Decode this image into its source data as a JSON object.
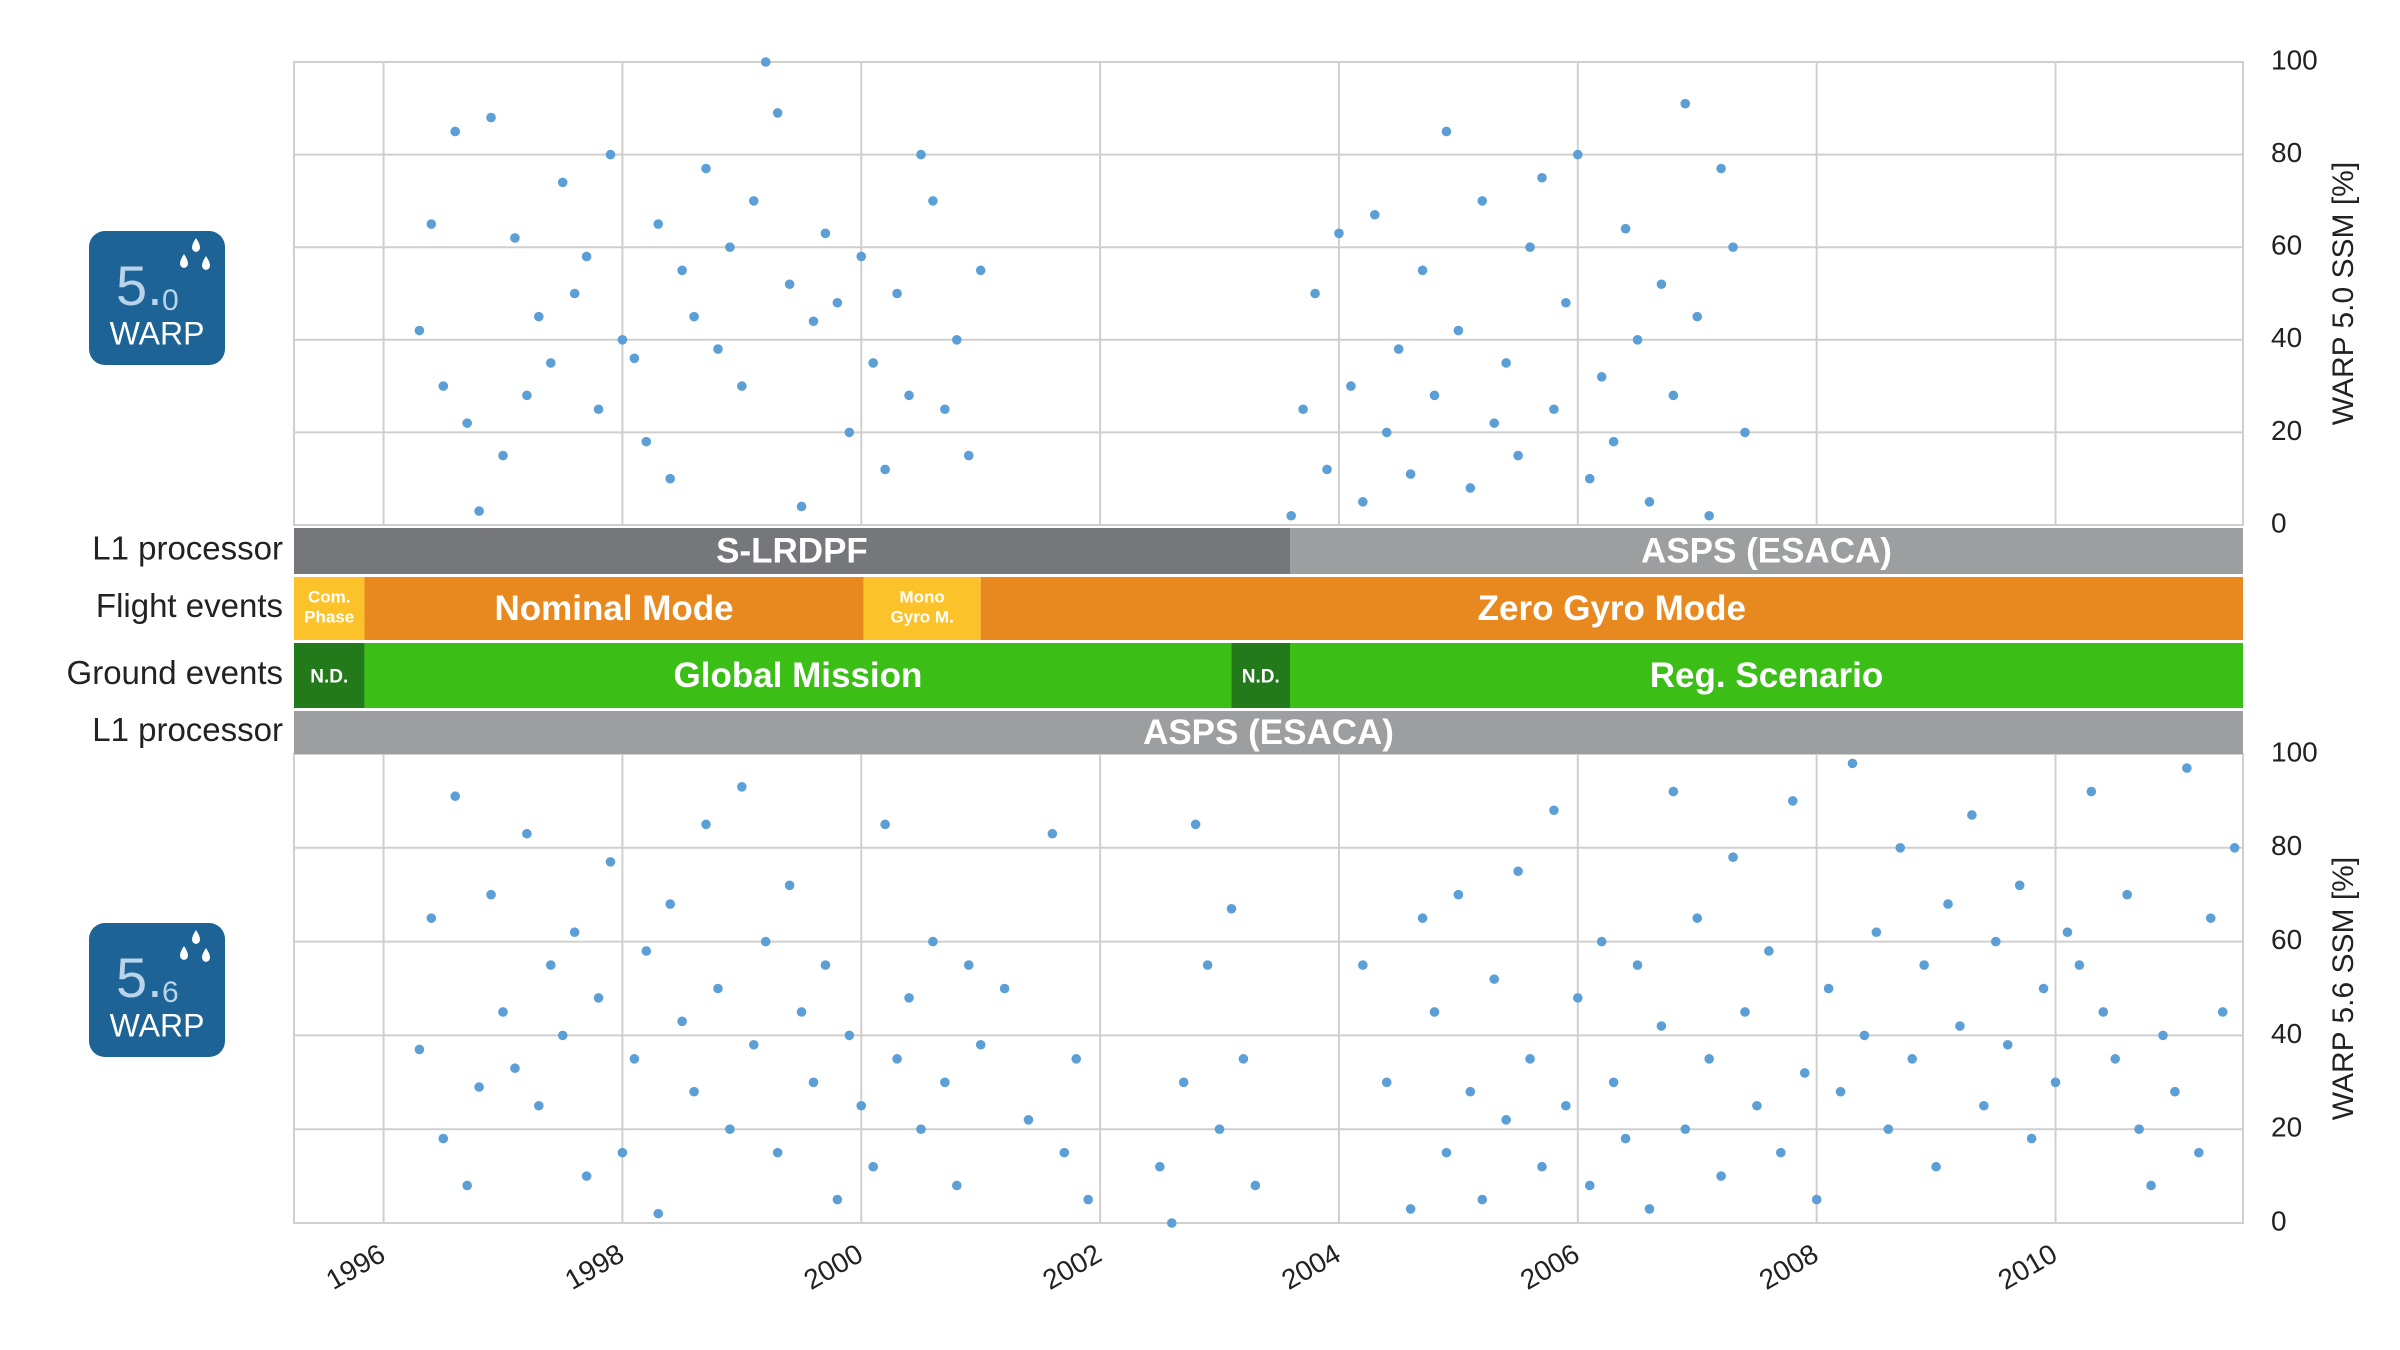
{
  "logos": [
    {
      "major": "5.",
      "minor": "0",
      "name": "WARP"
    },
    {
      "major": "5.",
      "minor": "6",
      "name": "WARP"
    }
  ],
  "chart_data": [
    {
      "type": "scatter",
      "ylabel": "WARP 5.0 SSM [%]",
      "color": "#5b9fd6",
      "xlim": [
        1995.25,
        2011.57
      ],
      "xticks": [
        1996,
        1998,
        2000,
        2002,
        2004,
        2006,
        2008,
        2010
      ],
      "ylim": [
        0,
        100
      ],
      "yticks": [
        0,
        20,
        40,
        60,
        80,
        100
      ],
      "grid": true,
      "x": [
        1996.3,
        1996.4,
        1996.5,
        1996.6,
        1996.7,
        1996.8,
        1996.9,
        1997.0,
        1997.1,
        1997.2,
        1997.3,
        1997.4,
        1997.5,
        1997.6,
        1997.7,
        1997.8,
        1997.9,
        1998.0,
        1998.1,
        1998.2,
        1998.3,
        1998.4,
        1998.5,
        1998.6,
        1998.7,
        1998.8,
        1998.9,
        1999.0,
        1999.1,
        1999.2,
        1999.3,
        1999.4,
        1999.5,
        1999.6,
        1999.7,
        1999.8,
        1999.9,
        2000.0,
        2000.1,
        2000.2,
        2000.3,
        2000.4,
        2000.5,
        2000.6,
        2000.7,
        2000.8,
        2000.9,
        2001.0,
        2003.6,
        2003.7,
        2003.8,
        2003.9,
        2004.0,
        2004.1,
        2004.2,
        2004.3,
        2004.4,
        2004.5,
        2004.6,
        2004.7,
        2004.8,
        2004.9,
        2005.0,
        2005.1,
        2005.2,
        2005.3,
        2005.4,
        2005.5,
        2005.6,
        2005.7,
        2005.8,
        2005.9,
        2006.0,
        2006.1,
        2006.2,
        2006.3,
        2006.4,
        2006.5,
        2006.6,
        2006.7,
        2006.8,
        2006.9,
        2007.0,
        2007.1,
        2007.2,
        2007.3,
        2007.4
      ],
      "values": [
        42,
        65,
        30,
        85,
        22,
        3,
        88,
        15,
        62,
        28,
        45,
        35,
        74,
        50,
        58,
        25,
        80,
        40,
        36,
        18,
        65,
        10,
        55,
        45,
        77,
        38,
        60,
        30,
        70,
        100,
        89,
        52,
        4,
        44,
        63,
        48,
        20,
        58,
        35,
        12,
        50,
        28,
        80,
        70,
        25,
        40,
        15,
        55,
        2,
        25,
        50,
        12,
        63,
        30,
        5,
        67,
        20,
        38,
        11,
        55,
        28,
        85,
        42,
        8,
        70,
        22,
        35,
        15,
        60,
        75,
        25,
        48,
        80,
        10,
        32,
        18,
        64,
        40,
        5,
        52,
        28,
        91,
        45,
        2,
        77,
        60,
        20
      ]
    },
    {
      "type": "scatter",
      "ylabel": "WARP 5.6 SSM [%]",
      "color": "#5b9fd6",
      "xlim": [
        1995.25,
        2011.57
      ],
      "xticks": [
        1996,
        1998,
        2000,
        2002,
        2004,
        2006,
        2008,
        2010
      ],
      "ylim": [
        0,
        100
      ],
      "yticks": [
        0,
        20,
        40,
        60,
        80,
        100
      ],
      "grid": true,
      "x": [
        1996.3,
        1996.4,
        1996.5,
        1996.6,
        1996.7,
        1996.8,
        1996.9,
        1997.0,
        1997.1,
        1997.2,
        1997.3,
        1997.4,
        1997.5,
        1997.6,
        1997.7,
        1997.8,
        1997.9,
        1998.0,
        1998.1,
        1998.2,
        1998.3,
        1998.4,
        1998.5,
        1998.6,
        1998.7,
        1998.8,
        1998.9,
        1999.0,
        1999.1,
        1999.2,
        1999.3,
        1999.4,
        1999.5,
        1999.6,
        1999.7,
        1999.8,
        1999.9,
        2000.0,
        2000.1,
        2000.2,
        2000.3,
        2000.4,
        2000.5,
        2000.6,
        2000.7,
        2000.8,
        2000.9,
        2001.0,
        2001.2,
        2001.4,
        2001.6,
        2001.7,
        2001.8,
        2001.9,
        2002.5,
        2002.6,
        2002.7,
        2002.8,
        2002.9,
        2003.0,
        2003.1,
        2003.2,
        2003.3,
        2004.2,
        2004.4,
        2004.6,
        2004.7,
        2004.8,
        2004.9,
        2005.0,
        2005.1,
        2005.2,
        2005.3,
        2005.4,
        2005.5,
        2005.6,
        2005.7,
        2005.8,
        2005.9,
        2006.0,
        2006.1,
        2006.2,
        2006.3,
        2006.4,
        2006.5,
        2006.6,
        2006.7,
        2006.8,
        2006.9,
        2007.0,
        2007.1,
        2007.2,
        2007.3,
        2007.4,
        2007.5,
        2007.6,
        2007.7,
        2007.8,
        2007.9,
        2008.0,
        2008.1,
        2008.2,
        2008.3,
        2008.4,
        2008.5,
        2008.6,
        2008.7,
        2008.8,
        2008.9,
        2009.0,
        2009.1,
        2009.2,
        2009.3,
        2009.4,
        2009.5,
        2009.6,
        2009.7,
        2009.8,
        2009.9,
        2010.0,
        2010.1,
        2010.2,
        2010.3,
        2010.4,
        2010.5,
        2010.6,
        2010.7,
        2010.8,
        2010.9,
        2011.0,
        2011.1,
        2011.2,
        2011.3,
        2011.4,
        2011.5
      ],
      "values": [
        37,
        65,
        18,
        91,
        8,
        29,
        70,
        45,
        33,
        83,
        25,
        55,
        40,
        62,
        10,
        48,
        77,
        15,
        35,
        58,
        2,
        68,
        43,
        28,
        85,
        50,
        20,
        93,
        38,
        60,
        15,
        72,
        45,
        30,
        55,
        5,
        40,
        25,
        12,
        85,
        35,
        48,
        20,
        60,
        30,
        8,
        55,
        38,
        50,
        22,
        83,
        15,
        35,
        5,
        12,
        0,
        30,
        85,
        55,
        20,
        67,
        35,
        8,
        55,
        30,
        3,
        65,
        45,
        15,
        70,
        28,
        5,
        52,
        22,
        75,
        35,
        12,
        88,
        25,
        48,
        8,
        60,
        30,
        18,
        55,
        3,
        42,
        92,
        20,
        65,
        35,
        10,
        78,
        45,
        25,
        58,
        15,
        90,
        32,
        5,
        50,
        28,
        98,
        40,
        62,
        20,
        80,
        35,
        55,
        12,
        68,
        42,
        87,
        25,
        60,
        38,
        72,
        18,
        50,
        30,
        62,
        55,
        92,
        45,
        35,
        70,
        20,
        8,
        40,
        28,
        97,
        15,
        65,
        45,
        80
      ]
    }
  ],
  "timeline": {
    "rows": [
      {
        "label": "L1 processor",
        "segments": [
          {
            "label": "S-LRDPF",
            "start": 1995.25,
            "end": 2003.59,
            "color": "#76777a"
          },
          {
            "label": "ASPS (ESACA)",
            "start": 2003.59,
            "end": 2011.57,
            "color": "#9d9ea0"
          }
        ]
      },
      {
        "label": "Flight events",
        "segments": [
          {
            "label": [
              "Com.",
              "Phase"
            ],
            "start": 1995.25,
            "end": 1995.84,
            "color": "#fcc22a"
          },
          {
            "label": "Nominal Mode",
            "start": 1995.84,
            "end": 2000.02,
            "color": "#e8891f"
          },
          {
            "label": [
              "Mono",
              "Gyro M."
            ],
            "start": 2000.02,
            "end": 2001.0,
            "color": "#fcc22a"
          },
          {
            "label": "Zero Gyro Mode",
            "start": 2001.0,
            "end": 2011.57,
            "color": "#e8891f"
          }
        ]
      },
      {
        "label": "Ground events",
        "segments": [
          {
            "label": "N.D.",
            "start": 1995.25,
            "end": 1995.84,
            "color": "#237a1a"
          },
          {
            "label": "Global Mission",
            "start": 1995.84,
            "end": 2003.1,
            "color": "#3bbf17"
          },
          {
            "label": "N.D.",
            "start": 2003.1,
            "end": 2003.59,
            "color": "#237a1a"
          },
          {
            "label": "Reg. Scenario",
            "start": 2003.59,
            "end": 2011.57,
            "color": "#3bbf17"
          }
        ]
      },
      {
        "label": "L1 processor",
        "segments": [
          {
            "label": "ASPS (ESACA)",
            "start": 1995.25,
            "end": 2011.57,
            "color": "#9d9ea0"
          }
        ]
      }
    ]
  }
}
